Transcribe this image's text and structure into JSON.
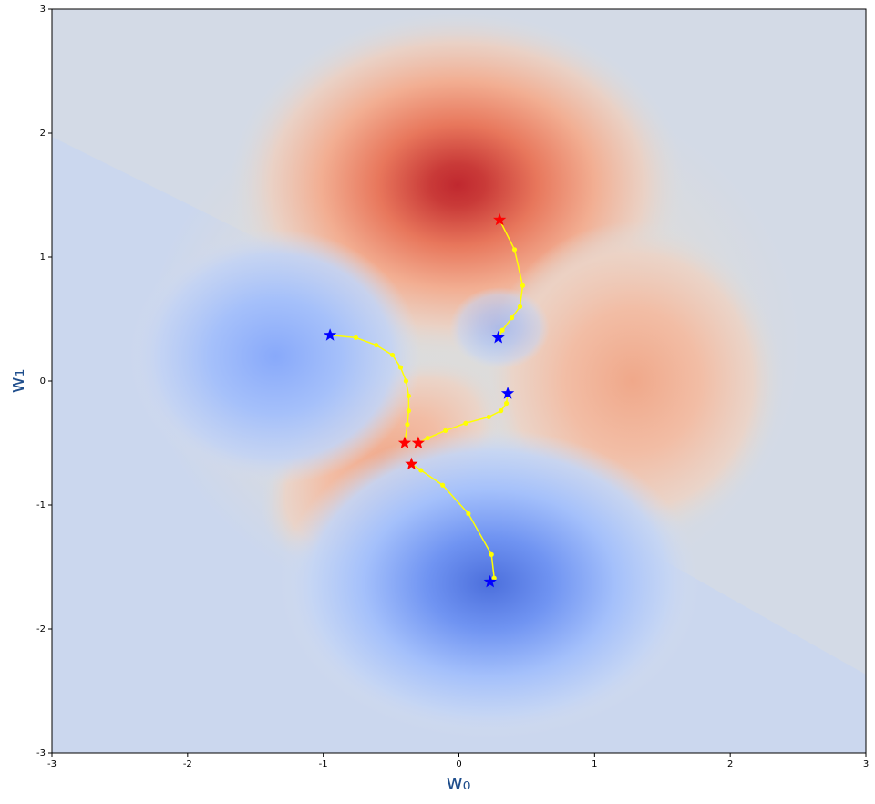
{
  "chart_data": {
    "type": "contour-trajectories",
    "x_label": "w₀",
    "y_label": "w₁",
    "xlim": [
      -3,
      3
    ],
    "ylim": [
      -3,
      3
    ],
    "xticks": [
      -3,
      -2,
      -1,
      0,
      1,
      2,
      3
    ],
    "yticks": [
      -3,
      -2,
      -1,
      0,
      1,
      2,
      3
    ],
    "line_color": "yellow",
    "series": [
      {
        "x": [
          0.3,
          0.41,
          0.47,
          0.45,
          0.39,
          0.32,
          0.29
        ],
        "y": [
          1.3,
          1.06,
          0.77,
          0.6,
          0.51,
          0.41,
          0.35
        ],
        "start_color": "red",
        "end_color": "blue"
      },
      {
        "x": [
          -0.95,
          -0.76,
          -0.61,
          -0.49,
          -0.43,
          -0.39,
          -0.37,
          -0.37,
          -0.38,
          -0.4
        ],
        "y": [
          0.37,
          0.35,
          0.29,
          0.21,
          0.11,
          0.0,
          -0.12,
          -0.24,
          -0.35,
          -0.5
        ],
        "start_color": "blue",
        "end_color": "red"
      },
      {
        "x": [
          0.36,
          0.35,
          0.31,
          0.22,
          0.05,
          -0.1,
          -0.23,
          -0.3
        ],
        "y": [
          -0.1,
          -0.18,
          -0.24,
          -0.29,
          -0.34,
          -0.4,
          -0.46,
          -0.5
        ],
        "start_color": "blue",
        "end_color": "red"
      },
      {
        "x": [
          -0.35,
          -0.28,
          -0.12,
          0.07,
          0.24,
          0.26,
          0.23
        ],
        "y": [
          -0.67,
          -0.72,
          -0.84,
          -1.07,
          -1.4,
          -1.59,
          -1.62
        ],
        "start_color": "red",
        "end_color": "blue"
      }
    ]
  }
}
